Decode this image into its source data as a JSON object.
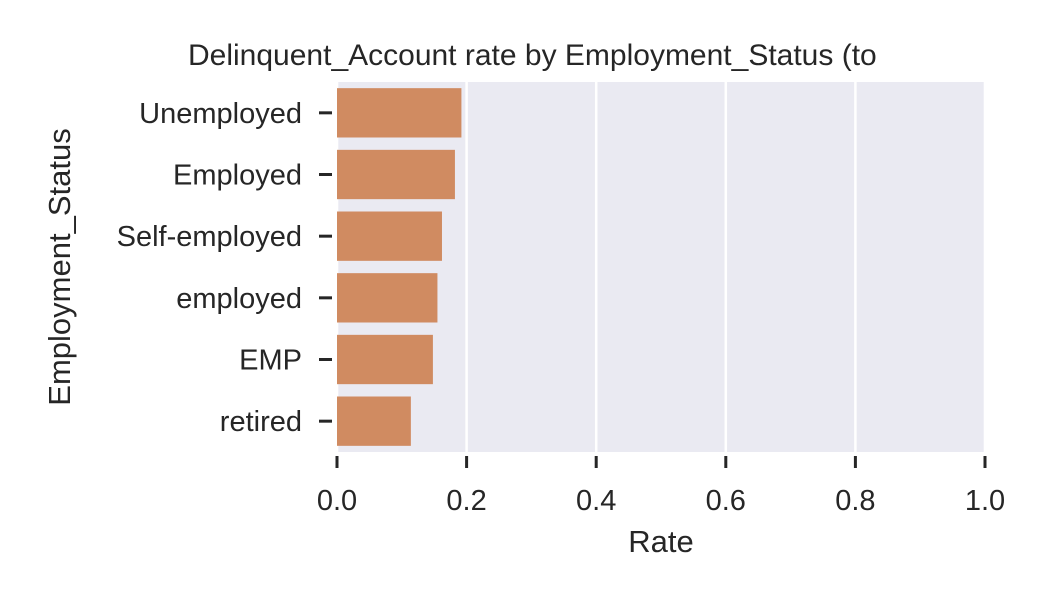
{
  "chart_data": {
    "type": "bar",
    "orientation": "horizontal",
    "title": "Delinquent_Account rate by Employment_Status (to",
    "xlabel": "Rate",
    "ylabel": "Employment_Status",
    "categories": [
      "Unemployed",
      "Employed",
      "Self-employed",
      "employed",
      "EMP",
      "retired"
    ],
    "values": [
      0.192,
      0.182,
      0.162,
      0.155,
      0.148,
      0.114
    ],
    "xlim": [
      0.0,
      1.0
    ],
    "xticks": [
      "0.0",
      "0.2",
      "0.4",
      "0.6",
      "0.8",
      "1.0"
    ],
    "grid": true,
    "legend": "none",
    "bar_color": "#d08b61",
    "plot_background": "#eaeaf2",
    "grid_color": "#ffffff"
  }
}
